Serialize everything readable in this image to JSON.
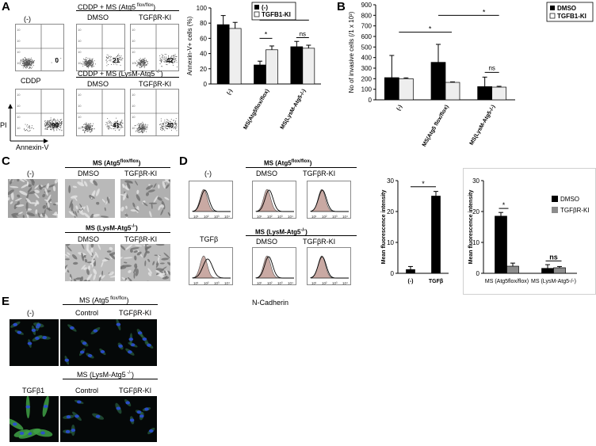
{
  "panels": {
    "A": "A",
    "B": "B",
    "C": "C",
    "D": "D",
    "E": "E"
  },
  "panelA": {
    "neg_label": "(-)",
    "cddp_label": "CDDP",
    "header1_main": "CDDP + MS (Atg5",
    "header1_sup": " flox/flox",
    "header1_end": ")",
    "header2_main": "CDDP + MS (LysM-Atg5",
    "header2_sup": " -/-",
    "header2_end": ")",
    "dmso": "DMSO",
    "ki": "TGFβR-KI",
    "flow_values": [
      "0",
      "21",
      "42",
      "90",
      "41",
      "40"
    ],
    "y_axis_label": "PI",
    "x_axis_label": "Annexin-V"
  },
  "panelC": {
    "neg_label": "(-)",
    "header1_main": "MS (Atg5",
    "header1_sup": "flox/flox",
    "header1_end": ")",
    "header2_main": "MS (LysM-Atg5",
    "header2_sup": "-/-",
    "header2_end": ")",
    "dmso": "DMSO",
    "ki": "TGFβR-KI"
  },
  "panelD": {
    "neg_label": "(-)",
    "tgfb_label": "TGFβ",
    "header1_main": "MS (Atg5",
    "header1_sup": "flox/flox",
    "header1_end": ")",
    "header2_main": "MS (LysM-Atg5",
    "header2_sup": "-/-",
    "header2_end": ")",
    "dmso": "DMSO",
    "ki": "TGFβR-KI",
    "x_axis_label": "N-Cadherin"
  },
  "panelE": {
    "neg_label": "(-)",
    "tgfb1_label": "TGFβ1",
    "header1_main": "MS (Atg5",
    "header1_sup": " flox/flox",
    "header1_end": ")",
    "header2_main": "MS (LysM-Atg5",
    "header2_sup": " -/-",
    "header2_end": ")",
    "control": "Control",
    "ki": "TGFβR-KI"
  },
  "colors": {
    "black_bar": "#000000",
    "white_bar": "#eeeeee",
    "gray_bar": "#8c8c8c",
    "histogram_fill": "#c9a9a3"
  },
  "chart_data": [
    {
      "id": "A-annexin",
      "type": "bar",
      "ylabel": "Annexin-V+ cells (%)",
      "ylim": [
        0,
        100
      ],
      "yticks": [
        "0",
        "20",
        "40",
        "60",
        "80",
        "100"
      ],
      "categories": [
        "(-)",
        "MS(Atg5flox/flox)",
        "MS(LysM-Atg5-/-)"
      ],
      "series": [
        {
          "name": "(-)",
          "values": [
            78,
            25,
            49
          ],
          "errors": [
            12,
            5,
            7
          ]
        },
        {
          "name": "TGFB1-KI",
          "values": [
            73,
            45,
            47
          ],
          "errors": [
            8,
            5,
            4
          ]
        }
      ],
      "annotations": [
        "*",
        "*",
        "ns"
      ]
    },
    {
      "id": "B-invasion",
      "type": "bar",
      "ylabel": "No of invasive cells (/1 x 10³)",
      "ylim": [
        0,
        900
      ],
      "yticks": [
        "0",
        "100",
        "200",
        "300",
        "400",
        "500",
        "600",
        "700",
        "800",
        "900"
      ],
      "categories": [
        "(-)",
        "MS(Atg5 flox/flox)",
        "MS(LysM-Atg5-/-)"
      ],
      "series": [
        {
          "name": "DMSO",
          "values": [
            210,
            355,
            125
          ],
          "errors": [
            210,
            170,
            90
          ]
        },
        {
          "name": "TGFB1-KI",
          "values": [
            200,
            165,
            120
          ],
          "errors": [
            8,
            5,
            8
          ]
        }
      ],
      "annotations": [
        "*",
        "*",
        "ns"
      ]
    },
    {
      "id": "D-tgfb",
      "type": "bar",
      "ylabel": "Mean fluorescence intensity",
      "ylim": [
        0,
        30
      ],
      "yticks": [
        "0",
        "10",
        "20",
        "30"
      ],
      "categories": [
        "(-)",
        "TGFβ"
      ],
      "values": [
        1.2,
        25
      ],
      "errors": [
        1,
        1.5
      ],
      "annotations": [
        "*"
      ]
    },
    {
      "id": "D-ms",
      "type": "bar",
      "ylabel": "Mean fluorescence intensity",
      "ylim": [
        0,
        30
      ],
      "yticks": [
        "0",
        "10",
        "20",
        "30"
      ],
      "categories": [
        "MS (Atg5flox/flox)",
        "MS (LysM-Atg5-/-)"
      ],
      "series": [
        {
          "name": "DMSO",
          "values": [
            18.5,
            1.6
          ],
          "errors": [
            1.2,
            1.2
          ]
        },
        {
          "name": "TGFβR-KI",
          "values": [
            2.3,
            1.8
          ],
          "errors": [
            1,
            0.4
          ]
        }
      ],
      "annotations": [
        "*",
        "ns"
      ]
    }
  ]
}
